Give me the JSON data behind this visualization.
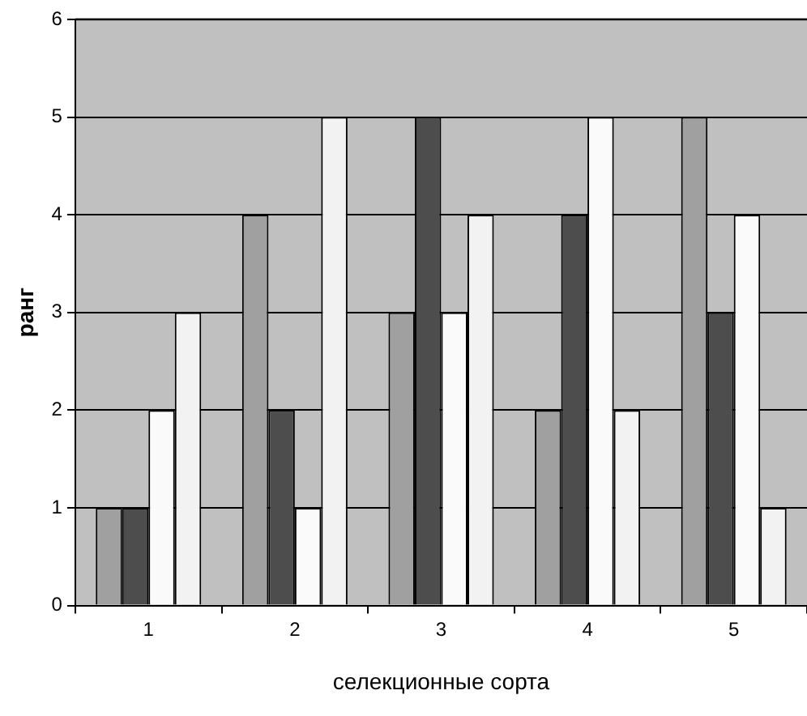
{
  "chart_data": {
    "type": "bar",
    "xlabel": "селекционные сорта",
    "ylabel": "ранг",
    "categories": [
      "1",
      "2",
      "3",
      "4",
      "5"
    ],
    "series": [
      {
        "color": "#a0a0a0",
        "values": [
          1,
          4,
          3,
          2,
          5
        ]
      },
      {
        "color": "#4d4d4d",
        "values": [
          1,
          2,
          5,
          4,
          3
        ]
      },
      {
        "color": "#fafafa",
        "values": [
          2,
          1,
          3,
          5,
          4
        ]
      },
      {
        "color": "#f2f2f2",
        "values": [
          3,
          5,
          4,
          2,
          1
        ]
      }
    ],
    "ylim": [
      0,
      6
    ],
    "yticks": [
      0,
      1,
      2,
      3,
      4,
      5,
      6
    ],
    "grid": "y",
    "legend": false
  }
}
